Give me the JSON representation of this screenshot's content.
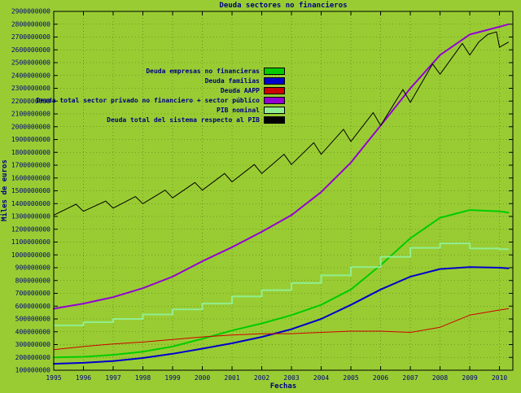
{
  "colors": {
    "background": "#99CC33",
    "text": "#000080",
    "axis": "#000000",
    "grid": "#4f6b14"
  },
  "chart_data": {
    "type": "line",
    "title": "Deuda sectores no financieros",
    "xlabel": "Fechas",
    "ylabel": "Miles de euros",
    "xlim": [
      1995,
      2010.45
    ],
    "ylim": [
      100000000,
      2900000000
    ],
    "grid": true,
    "legend_position": "upper-left",
    "x_ticks": [
      1995,
      1996,
      1997,
      1998,
      1999,
      2000,
      2001,
      2002,
      2003,
      2004,
      2005,
      2006,
      2007,
      2008,
      2009,
      2010
    ],
    "y_ticks": [
      100000000,
      200000000,
      300000000,
      400000000,
      500000000,
      600000000,
      700000000,
      800000000,
      900000000,
      1000000000,
      1100000000,
      1200000000,
      1300000000,
      1400000000,
      1500000000,
      1600000000,
      1700000000,
      1800000000,
      1900000000,
      2000000000,
      2100000000,
      2200000000,
      2300000000,
      2400000000,
      2500000000,
      2600000000,
      2700000000,
      2800000000,
      2900000000
    ],
    "series": [
      {
        "name": "Deuda empresas no financieras",
        "color": "#00CC00",
        "width": 2,
        "step": false,
        "x": [
          1995,
          1996,
          1997,
          1998,
          1999,
          2000,
          2001,
          2002,
          2003,
          2004,
          2005,
          2006,
          2007,
          2008,
          2009,
          2010,
          2010.3
        ],
        "y": [
          200000000,
          205000000,
          220000000,
          245000000,
          285000000,
          345000000,
          410000000,
          465000000,
          530000000,
          610000000,
          730000000,
          920000000,
          1130000000,
          1290000000,
          1350000000,
          1340000000,
          1330000000
        ]
      },
      {
        "name": "Deuda familias",
        "color": "#0000CC",
        "width": 2,
        "step": false,
        "x": [
          1995,
          1996,
          1997,
          1998,
          1999,
          2000,
          2001,
          2002,
          2003,
          2004,
          2005,
          2006,
          2007,
          2008,
          2009,
          2010,
          2010.3
        ],
        "y": [
          150000000,
          158000000,
          172000000,
          195000000,
          228000000,
          268000000,
          310000000,
          360000000,
          420000000,
          500000000,
          610000000,
          730000000,
          830000000,
          890000000,
          905000000,
          900000000,
          895000000
        ]
      },
      {
        "name": "Deuda AAPP",
        "color": "#CC0000",
        "width": 1,
        "step": false,
        "x": [
          1995,
          1996,
          1997,
          1998,
          1999,
          2000,
          2001,
          2002,
          2003,
          2004,
          2005,
          2006,
          2007,
          2008,
          2009,
          2010,
          2010.3
        ],
        "y": [
          260000000,
          285000000,
          305000000,
          320000000,
          340000000,
          360000000,
          375000000,
          385000000,
          385000000,
          395000000,
          405000000,
          405000000,
          395000000,
          435000000,
          530000000,
          570000000,
          580000000
        ]
      },
      {
        "name": "Deuda total sector privado no financiero + sector público",
        "color": "#9400D3",
        "width": 2,
        "step": false,
        "x": [
          1995,
          1996,
          1997,
          1998,
          1999,
          2000,
          2001,
          2002,
          2003,
          2004,
          2005,
          2006,
          2007,
          2008,
          2009,
          2010,
          2010.3
        ],
        "y": [
          580000000,
          620000000,
          670000000,
          740000000,
          830000000,
          950000000,
          1060000000,
          1180000000,
          1310000000,
          1490000000,
          1720000000,
          2010000000,
          2300000000,
          2560000000,
          2720000000,
          2780000000,
          2800000000
        ]
      },
      {
        "name": "PIB nominal",
        "color": "#90EE90",
        "width": 2,
        "step": true,
        "x": [
          1995,
          1996,
          1997,
          1998,
          1999,
          2000,
          2001,
          2002,
          2003,
          2004,
          2005,
          2006,
          2007,
          2008,
          2009,
          2010,
          2010.3
        ],
        "y": [
          450000000,
          475000000,
          500000000,
          535000000,
          575000000,
          620000000,
          675000000,
          725000000,
          780000000,
          840000000,
          905000000,
          985000000,
          1055000000,
          1090000000,
          1050000000,
          1045000000,
          1045000000
        ]
      },
      {
        "name": "Deuda total del sistema respecto al PIB",
        "color": "#000000",
        "width": 1,
        "step": false,
        "x": [
          1995,
          1995.75,
          1996,
          1996.75,
          1997,
          1997.75,
          1998,
          1998.75,
          1999,
          1999.75,
          2000,
          2000.75,
          2001,
          2001.75,
          2002,
          2002.75,
          2003,
          2003.75,
          2004,
          2004.75,
          2005,
          2005.75,
          2006,
          2006.75,
          2007,
          2007.75,
          2008,
          2008.75,
          2009,
          2009.3,
          2009.6,
          2009.9,
          2010,
          2010.3
        ],
        "y": [
          1310000000,
          1395000000,
          1340000000,
          1420000000,
          1365000000,
          1455000000,
          1400000000,
          1505000000,
          1445000000,
          1565000000,
          1505000000,
          1635000000,
          1570000000,
          1705000000,
          1635000000,
          1785000000,
          1705000000,
          1875000000,
          1785000000,
          1980000000,
          1885000000,
          2110000000,
          2010000000,
          2290000000,
          2190000000,
          2490000000,
          2410000000,
          2650000000,
          2560000000,
          2660000000,
          2720000000,
          2740000000,
          2620000000,
          2660000000
        ]
      }
    ]
  }
}
